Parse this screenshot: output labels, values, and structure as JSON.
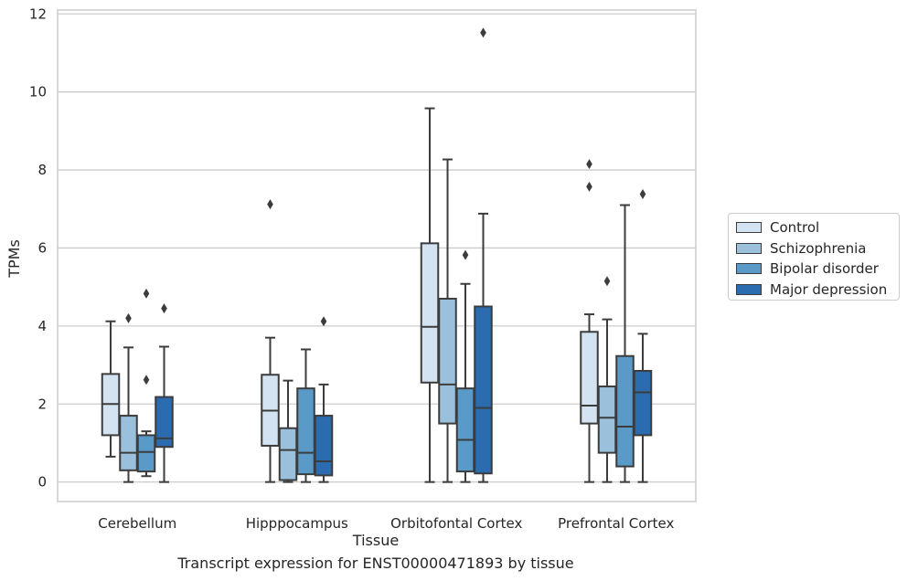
{
  "chart_data": {
    "type": "boxplot",
    "title": "",
    "xlabel": "Tissue",
    "ylabel": "TPMs",
    "caption": "Transcript expression for ENST00000471893 by tissue",
    "ylim": [
      -0.5,
      12.1
    ],
    "yticks": [
      0,
      2,
      4,
      6,
      8,
      10,
      12
    ],
    "grid": "horizontal",
    "legend_position": "right",
    "categories": [
      "Cerebellum",
      "Hipppocampus",
      "Orbitofontal Cortex",
      "Prefrontal Cortex"
    ],
    "series": [
      {
        "name": "Control",
        "color": "#d4e3f2",
        "boxes": [
          {
            "whislo": 0.65,
            "q1": 1.2,
            "med": 2.0,
            "q3": 2.77,
            "whishi": 4.12,
            "fliers": []
          },
          {
            "whislo": 0.0,
            "q1": 0.93,
            "med": 1.83,
            "q3": 2.75,
            "whishi": 3.7,
            "fliers": [
              7.12
            ]
          },
          {
            "whislo": 0.0,
            "q1": 2.55,
            "med": 3.98,
            "q3": 6.12,
            "whishi": 9.58,
            "fliers": []
          },
          {
            "whislo": 0.0,
            "q1": 1.5,
            "med": 1.96,
            "q3": 3.85,
            "whishi": 4.3,
            "fliers": [
              7.57,
              8.15
            ]
          }
        ]
      },
      {
        "name": "Schizophrenia",
        "color": "#9bc0dc",
        "boxes": [
          {
            "whislo": 0.0,
            "q1": 0.3,
            "med": 0.75,
            "q3": 1.7,
            "whishi": 3.45,
            "fliers": [
              4.2
            ]
          },
          {
            "whislo": 0.0,
            "q1": 0.05,
            "med": 0.82,
            "q3": 1.38,
            "whishi": 2.6,
            "fliers": []
          },
          {
            "whislo": 0.0,
            "q1": 1.5,
            "med": 2.5,
            "q3": 4.7,
            "whishi": 8.27,
            "fliers": []
          },
          {
            "whislo": 0.0,
            "q1": 0.75,
            "med": 1.65,
            "q3": 2.45,
            "whishi": 4.17,
            "fliers": [
              5.15
            ]
          }
        ]
      },
      {
        "name": "Bipolar disorder",
        "color": "#5a9ac9",
        "boxes": [
          {
            "whislo": 0.15,
            "q1": 0.27,
            "med": 0.77,
            "q3": 1.2,
            "whishi": 1.3,
            "fliers": [
              2.62,
              4.83
            ]
          },
          {
            "whislo": 0.0,
            "q1": 0.2,
            "med": 0.75,
            "q3": 2.4,
            "whishi": 3.4,
            "fliers": []
          },
          {
            "whislo": 0.0,
            "q1": 0.27,
            "med": 1.08,
            "q3": 2.4,
            "whishi": 5.08,
            "fliers": [
              5.82
            ]
          },
          {
            "whislo": 0.0,
            "q1": 0.4,
            "med": 1.42,
            "q3": 3.23,
            "whishi": 7.1,
            "fliers": []
          }
        ]
      },
      {
        "name": "Major depression",
        "color": "#2b6cb0",
        "boxes": [
          {
            "whislo": 0.0,
            "q1": 0.9,
            "med": 1.12,
            "q3": 2.18,
            "whishi": 3.47,
            "fliers": [
              4.45
            ]
          },
          {
            "whislo": 0.0,
            "q1": 0.17,
            "med": 0.53,
            "q3": 1.7,
            "whishi": 2.5,
            "fliers": [
              4.12
            ]
          },
          {
            "whislo": 0.0,
            "q1": 0.22,
            "med": 1.9,
            "q3": 4.5,
            "whishi": 6.88,
            "fliers": [
              11.52
            ]
          },
          {
            "whislo": 0.0,
            "q1": 1.2,
            "med": 2.3,
            "q3": 2.85,
            "whishi": 3.8,
            "fliers": [
              7.38
            ]
          }
        ]
      }
    ]
  }
}
